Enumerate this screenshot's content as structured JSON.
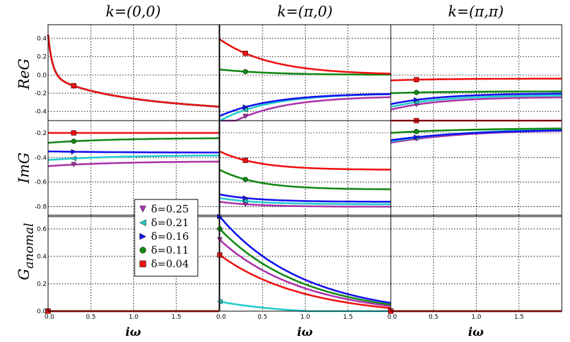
{
  "chart_data": {
    "type": "line",
    "column_titles": [
      "k=(0,0)",
      "k=(π,0)",
      "k=(π,π)"
    ],
    "row_labels": [
      "ReG",
      "ImG",
      "G",
      "anomal"
    ],
    "xlabel": "iω",
    "xlim": [
      0,
      2.0
    ],
    "x_ticks": [
      0,
      0.5,
      1.0,
      1.5
    ],
    "x_tick_labels": [
      "0.0",
      "0.5",
      "1.0",
      "1.5"
    ],
    "rows": [
      {
        "name": "ReG",
        "ylim": [
          -0.5,
          0.55
        ],
        "y_ticks": [
          -0.4,
          -0.2,
          0.0,
          0.2,
          0.4
        ],
        "y_tick_labels": [
          "-0.4",
          "-0.2",
          "0.0",
          "0.2",
          "0.4"
        ]
      },
      {
        "name": "ImG",
        "ylim": [
          -0.88,
          -0.1
        ],
        "y_ticks": [
          -0.8,
          -0.6,
          -0.4,
          -0.2
        ],
        "y_tick_labels": [
          "-0.8",
          "-0.6",
          "-0.4",
          "-0.2"
        ]
      },
      {
        "name": "Ganomal",
        "ylim": [
          0,
          0.7
        ],
        "y_ticks": [
          0.0,
          0.2,
          0.4,
          0.6
        ],
        "y_tick_labels": [
          "0.0",
          "0.2",
          "0.4",
          "0.6"
        ]
      }
    ],
    "legend": {
      "location": "lower-left of (0,0) column",
      "entries": [
        "δ=0.25",
        "δ=0.21",
        "δ=0.16",
        "δ=0.11",
        "δ=0.04"
      ]
    },
    "series": [
      {
        "name": "δ=0.25",
        "color": "#aa33aa",
        "marker": "triangle-down",
        "panels": {
          "0-0": {
            "a": 0.44,
            "b": 0.52,
            "c": 0.05,
            "d": 0.0
          },
          "0-1": {
            "a": -0.6,
            "b": 0.0,
            "c": 0.6,
            "d": -0.23
          },
          "0-2": {
            "a": -0.38,
            "b": 0.0,
            "c": 0.6,
            "d": -0.24
          },
          "1-0": {
            "a": -0.47,
            "b": 0.0,
            "c": 0.8,
            "d": -0.43
          },
          "1-1": {
            "a": -0.76,
            "b": 0.0,
            "c": 0.45,
            "d": -0.8
          },
          "1-2": {
            "a": -0.28,
            "b": 0.0,
            "c": 0.9,
            "d": -0.17
          },
          "2-0": {
            "a": 0.0,
            "b": 0.0,
            "c": 1.0,
            "d": 0.0
          },
          "2-1": {
            "a": 0.52,
            "b": 0.05,
            "c": 1.0,
            "d": 0.0
          },
          "2-2": {
            "a": 0.0,
            "b": 0.0,
            "c": 1.0,
            "d": 0.0
          }
        }
      },
      {
        "name": "δ=0.21",
        "color": "#22cccc",
        "marker": "triangle-left",
        "panels": {
          "0-0": {
            "a": 0.44,
            "b": 0.52,
            "c": 0.05,
            "d": 0.0
          },
          "0-1": {
            "a": -0.5,
            "b": 0.0,
            "c": 0.6,
            "d": -0.2
          },
          "0-2": {
            "a": -0.35,
            "b": 0.0,
            "c": 0.6,
            "d": -0.22
          },
          "1-0": {
            "a": -0.42,
            "b": 0.0,
            "c": 0.8,
            "d": -0.38
          },
          "1-1": {
            "a": -0.73,
            "b": 0.0,
            "c": 0.45,
            "d": -0.78
          },
          "1-2": {
            "a": -0.27,
            "b": 0.0,
            "c": 0.9,
            "d": -0.16
          },
          "2-0": {
            "a": 0.0,
            "b": 0.0,
            "c": 1.0,
            "d": 0.0
          },
          "2-1": {
            "a": 0.07,
            "b": 0.05,
            "c": 1.0,
            "d": 0.0
          },
          "2-2": {
            "a": 0.0,
            "b": 0.0,
            "c": 1.0,
            "d": 0.0
          }
        }
      },
      {
        "name": "δ=0.16",
        "color": "#1111ee",
        "marker": "triangle-right",
        "panels": {
          "0-0": {
            "a": 0.44,
            "b": 0.52,
            "c": 0.05,
            "d": 0.0
          },
          "0-1": {
            "a": -0.45,
            "b": 0.0,
            "c": 0.6,
            "d": -0.2
          },
          "0-2": {
            "a": -0.32,
            "b": 0.0,
            "c": 0.6,
            "d": -0.2
          },
          "1-0": {
            "a": -0.35,
            "b": 0.0,
            "c": 0.8,
            "d": -0.36
          },
          "1-1": {
            "a": -0.7,
            "b": 0.0,
            "c": 0.45,
            "d": -0.76
          },
          "1-2": {
            "a": -0.26,
            "b": 0.0,
            "c": 0.9,
            "d": -0.17
          },
          "2-0": {
            "a": 0.0,
            "b": 0.0,
            "c": 1.0,
            "d": 0.0
          },
          "2-1": {
            "a": 0.69,
            "b": 0.05,
            "c": 1.0,
            "d": 0.0
          },
          "2-2": {
            "a": 0.0,
            "b": 0.0,
            "c": 1.0,
            "d": 0.0
          }
        }
      },
      {
        "name": "δ=0.11",
        "color": "#118811",
        "marker": "circle",
        "panels": {
          "0-0": {
            "a": 0.44,
            "b": 0.52,
            "c": 0.05,
            "d": 0.0
          },
          "0-1": {
            "a": 0.06,
            "b": 0.0,
            "c": 0.6,
            "d": 0.0
          },
          "0-2": {
            "a": -0.2,
            "b": 0.0,
            "c": 0.6,
            "d": -0.18
          },
          "1-0": {
            "a": -0.28,
            "b": 0.0,
            "c": 0.8,
            "d": -0.24
          },
          "1-1": {
            "a": -0.5,
            "b": 0.0,
            "c": 0.45,
            "d": -0.66
          },
          "1-2": {
            "a": -0.2,
            "b": 0.0,
            "c": 0.9,
            "d": -0.16
          },
          "2-0": {
            "a": 0.0,
            "b": 0.0,
            "c": 1.0,
            "d": 0.0
          },
          "2-1": {
            "a": 0.6,
            "b": 0.05,
            "c": 1.0,
            "d": 0.0
          },
          "2-2": {
            "a": 0.0,
            "b": 0.0,
            "c": 1.0,
            "d": 0.0
          }
        }
      },
      {
        "name": "δ=0.04",
        "color": "#ee1111",
        "marker": "square",
        "panels": {
          "0-0": {
            "a": 0.44,
            "b": 0.52,
            "c": 0.05,
            "d": 0.0
          },
          "0-1": {
            "a": 0.39,
            "b": 0.0,
            "c": 0.6,
            "d": 0.0
          },
          "0-2": {
            "a": -0.06,
            "b": 0.0,
            "c": 0.6,
            "d": -0.04
          },
          "1-0": {
            "a": -0.2,
            "b": 0.0,
            "c": 0.8,
            "d": -0.2
          },
          "1-1": {
            "a": -0.35,
            "b": 0.0,
            "c": 0.45,
            "d": -0.5
          },
          "1-2": {
            "a": -0.1,
            "b": 0.0,
            "c": 0.9,
            "d": -0.1
          },
          "2-0": {
            "a": 0.0,
            "b": 0.0,
            "c": 1.0,
            "d": 0.0
          },
          "2-1": {
            "a": 0.41,
            "b": 0.05,
            "c": 1.0,
            "d": 0.0
          },
          "2-2": {
            "a": 0.0,
            "b": 0.0,
            "c": 1.0,
            "d": 0.0
          }
        }
      }
    ]
  }
}
